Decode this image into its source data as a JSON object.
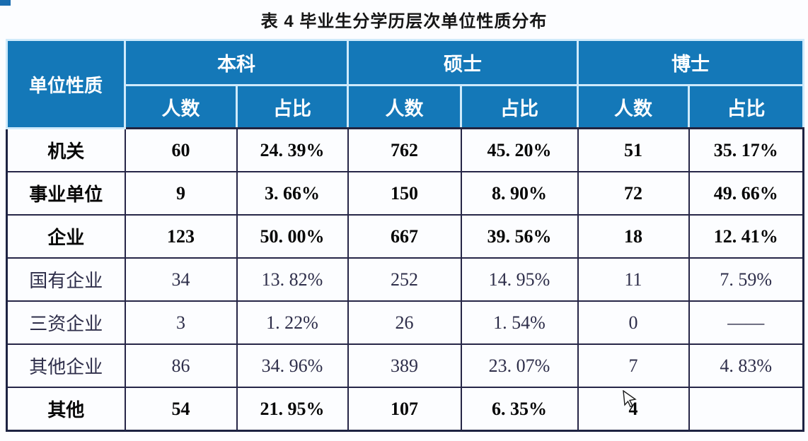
{
  "page": {
    "title": "表 4 毕业生分学历层次单位性质分布"
  },
  "table": {
    "corner_header": "单位性质",
    "groups": [
      {
        "label": "本科"
      },
      {
        "label": "硕士"
      },
      {
        "label": "博士"
      }
    ],
    "sub_headers": {
      "count": "人数",
      "ratio": "占比"
    },
    "rows": [
      {
        "label": "机关",
        "style": "major",
        "cells": [
          "60",
          "24. 39%",
          "762",
          "45. 20%",
          "51",
          "35. 17%"
        ]
      },
      {
        "label": "事业单位",
        "style": "major",
        "cells": [
          "9",
          "3. 66%",
          "150",
          "8. 90%",
          "72",
          "49. 66%"
        ]
      },
      {
        "label": "企业",
        "style": "major",
        "cells": [
          "123",
          "50. 00%",
          "667",
          "39. 56%",
          "18",
          "12. 41%"
        ]
      },
      {
        "label": "国有企业",
        "style": "minor",
        "cells": [
          "34",
          "13. 82%",
          "252",
          "14. 95%",
          "11",
          "7. 59%"
        ]
      },
      {
        "label": "三资企业",
        "style": "minor",
        "cells": [
          "3",
          "1. 22%",
          "26",
          "1. 54%",
          "0",
          "——"
        ]
      },
      {
        "label": "其他企业",
        "style": "minor",
        "cells": [
          "86",
          "34. 96%",
          "389",
          "23. 07%",
          "7",
          "4. 83%"
        ]
      },
      {
        "label": "其他",
        "style": "major",
        "cells": [
          "54",
          "21. 95%",
          "107",
          "6. 35%",
          "4",
          ""
        ]
      }
    ],
    "cursor_cell": {
      "row": 6,
      "col": 4
    }
  },
  "colors": {
    "header_bg": "#1478b8",
    "header_text": "#ffffff",
    "header_grid": "#cfeafb",
    "data_grid": "#262647",
    "outer_border": "#1d2342",
    "major_text": "#070707",
    "minor_text": "#2e2e4a",
    "title_text": "#161616",
    "corner_mark": "#1a6db0"
  }
}
